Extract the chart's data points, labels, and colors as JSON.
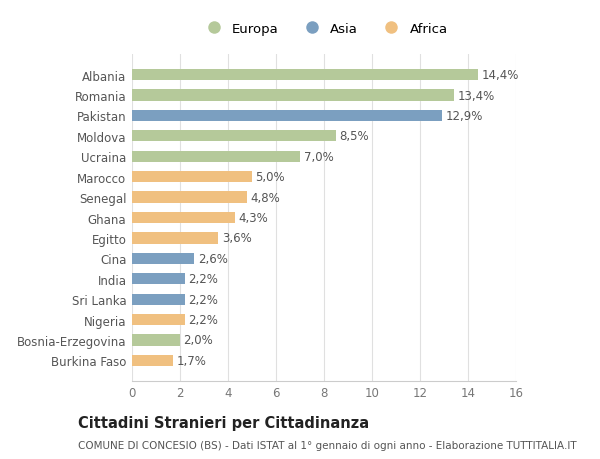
{
  "categories": [
    "Burkina Faso",
    "Bosnia-Erzegovina",
    "Nigeria",
    "Sri Lanka",
    "India",
    "Cina",
    "Egitto",
    "Ghana",
    "Senegal",
    "Marocco",
    "Ucraina",
    "Moldova",
    "Pakistan",
    "Romania",
    "Albania"
  ],
  "values": [
    1.7,
    2.0,
    2.2,
    2.2,
    2.2,
    2.6,
    3.6,
    4.3,
    4.8,
    5.0,
    7.0,
    8.5,
    12.9,
    13.4,
    14.4
  ],
  "continents": [
    "Africa",
    "Europa",
    "Africa",
    "Asia",
    "Asia",
    "Asia",
    "Africa",
    "Africa",
    "Africa",
    "Africa",
    "Europa",
    "Europa",
    "Asia",
    "Europa",
    "Europa"
  ],
  "labels": [
    "1,7%",
    "2,0%",
    "2,2%",
    "2,2%",
    "2,2%",
    "2,6%",
    "3,6%",
    "4,3%",
    "4,8%",
    "5,0%",
    "7,0%",
    "8,5%",
    "12,9%",
    "13,4%",
    "14,4%"
  ],
  "color_map": {
    "Europa": "#b5c99a",
    "Asia": "#7b9fc0",
    "Africa": "#f0c080"
  },
  "legend_order": [
    "Europa",
    "Asia",
    "Africa"
  ],
  "legend_colors": [
    "#b5c99a",
    "#7b9fc0",
    "#f0c080"
  ],
  "title": "Cittadini Stranieri per Cittadinanza",
  "subtitle": "COMUNE DI CONCESIO (BS) - Dati ISTAT al 1° gennaio di ogni anno - Elaborazione TUTTITALIA.IT",
  "xlim": [
    0,
    16
  ],
  "xticks": [
    0,
    2,
    4,
    6,
    8,
    10,
    12,
    14,
    16
  ],
  "background_color": "#ffffff",
  "grid_color": "#e0e0e0",
  "bar_height": 0.55,
  "label_fontsize": 8.5,
  "tick_fontsize": 8.5,
  "title_fontsize": 10.5,
  "subtitle_fontsize": 7.5
}
